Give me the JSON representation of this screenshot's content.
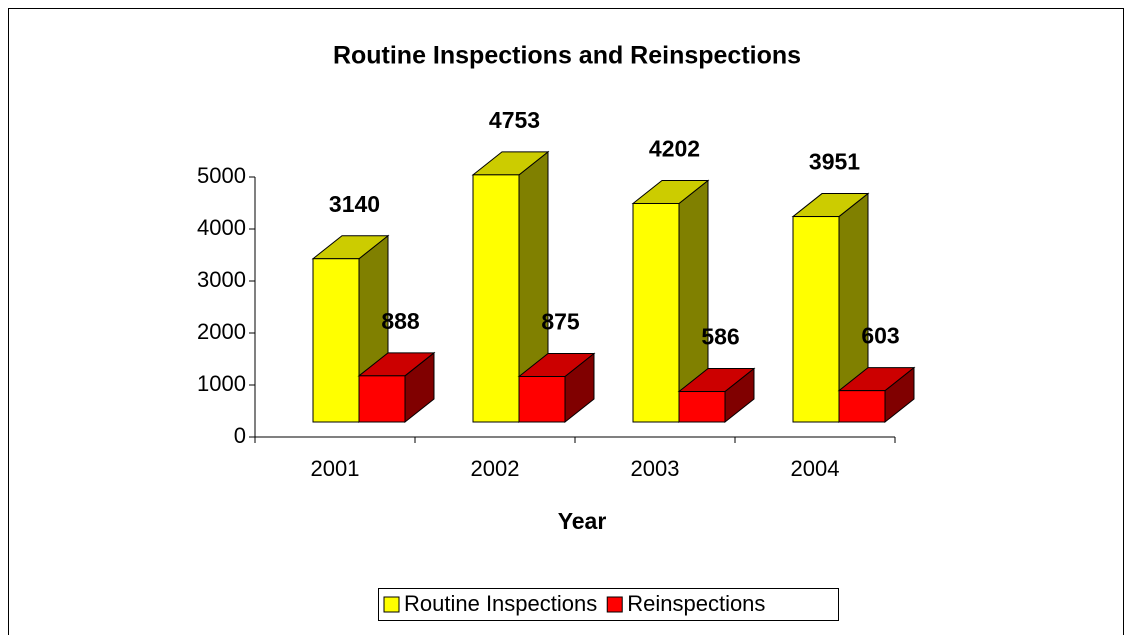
{
  "chart_data": {
    "type": "bar",
    "title": "Routine Inspections and Reinspections",
    "categories": [
      "2001",
      "2002",
      "2003",
      "2004"
    ],
    "series": [
      {
        "name": "Routine Inspections",
        "color": "#ffff00",
        "values": [
          3140,
          4753,
          4202,
          3951
        ]
      },
      {
        "name": "Reinspections",
        "color": "#ff0000",
        "values": [
          888,
          875,
          586,
          603
        ]
      }
    ],
    "xlabel": "Year",
    "ylim": [
      0,
      5000
    ],
    "yticks": [
      0,
      1000,
      2000,
      3000,
      4000,
      5000
    ]
  }
}
